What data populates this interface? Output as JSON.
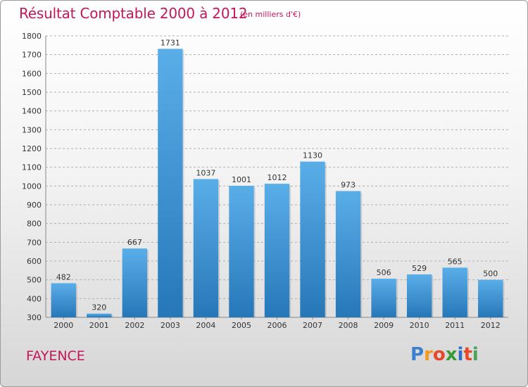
{
  "header": {
    "title": "Résultat Comptable 2000 à 2012",
    "subtitle": "(en milliers d'€)"
  },
  "footer": {
    "place": "FAYENCE",
    "logo_letters": [
      "P",
      "r",
      "o",
      "x",
      "i",
      "t",
      "i"
    ],
    "logo_colors": [
      "#3a7fd0",
      "#f29a1d",
      "#e8482a",
      "#3a9a3a",
      "#2f6fc4",
      "#e8482a",
      "#49a35c"
    ]
  },
  "colors": {
    "bar_top": "#5aaee8",
    "bar_bottom": "#2677b8",
    "grid": "#b0b0b0",
    "accent": "#c2185b"
  },
  "chart_data": {
    "type": "bar",
    "title": "Résultat Comptable 2000 à 2012",
    "subtitle": "(en milliers d'€)",
    "categories": [
      "2000",
      "2001",
      "2002",
      "2003",
      "2004",
      "2005",
      "2006",
      "2007",
      "2008",
      "2009",
      "2010",
      "2011",
      "2012"
    ],
    "values": [
      482,
      320,
      667,
      1731,
      1037,
      1001,
      1012,
      1130,
      973,
      506,
      529,
      565,
      500
    ],
    "value_labels": [
      "482",
      "320",
      "667",
      "1731",
      "1037",
      "1001",
      "1012",
      "1130",
      "973",
      "506",
      "529",
      "565",
      "500"
    ],
    "ylim": [
      300,
      1800
    ],
    "yticks": [
      "300",
      "400",
      "500",
      "600",
      "700",
      "800",
      "900",
      "1000",
      "1100",
      "1200",
      "1300",
      "1400",
      "1500",
      "1600",
      "1700",
      "1800"
    ],
    "grid": true,
    "xlabel": "",
    "ylabel": ""
  }
}
